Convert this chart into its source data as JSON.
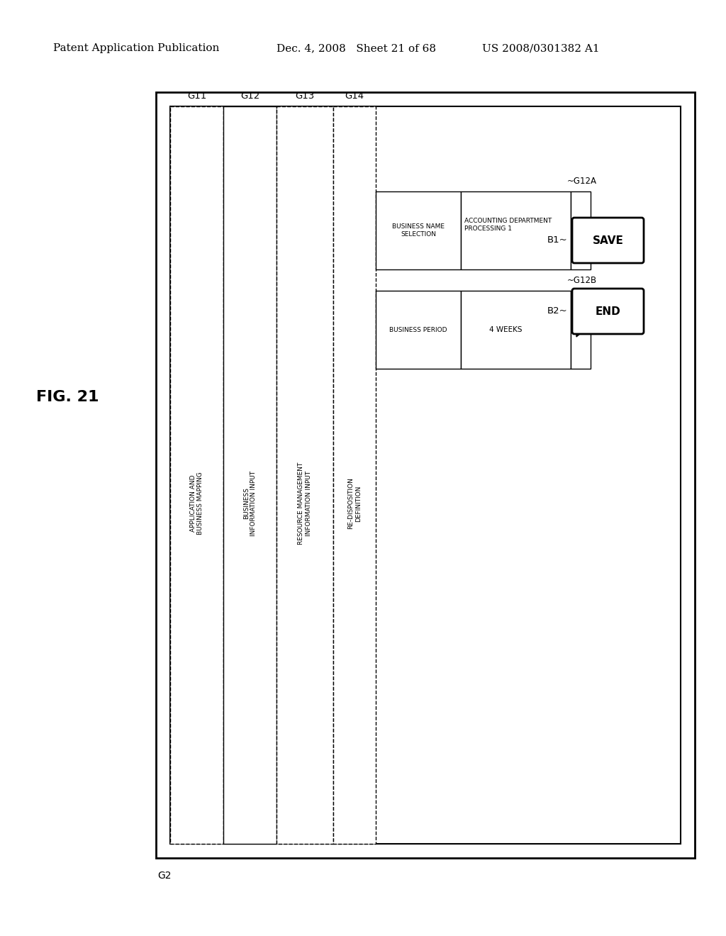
{
  "bg_color": "#ffffff",
  "header_left": "Patent Application Publication",
  "header_mid": "Dec. 4, 2008   Sheet 21 of 68",
  "header_right": "US 2008/0301382 A1",
  "fig_label": "FIG. 21",
  "g2_label": "G2",
  "g11_label": "G11",
  "g12_label": "G12",
  "g13_label": "G13",
  "g14_label": "G14",
  "col1_label": "APPLICATION AND\nBUSINESS MAPPING",
  "col2_label": "BUSINESS\nINFORMATION INPUT",
  "col3_label": "RESOURCE MANAGEMENT\nINFORMATION INPUT",
  "col4_label": "RE-DISPOSITION\nDEFINITION",
  "row1_label": "BUSINESS NAME\nSELECTION",
  "row2_label": "BUSINESS PERIOD",
  "row1_value_label": "ACCOUNTING DEPARTMENT\nPROCESSING 1",
  "row2_value_label": "4 WEEKS",
  "g12a_label": "~G12A",
  "g12b_label": "~G12B",
  "b1_label": "B1~",
  "b2_label": "B2~",
  "save_label": "SAVE",
  "end_label": "END"
}
